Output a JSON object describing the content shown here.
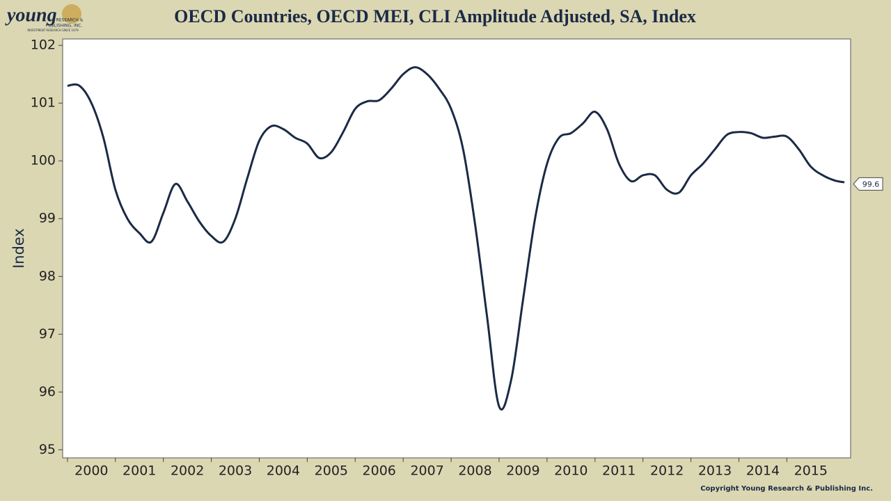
{
  "logo": {
    "name": "young",
    "line1": "RESEARCH &",
    "line2": "PUBLISHING, INC.",
    "tagline": "INVESTMENT RESEARCH SINCE 1979"
  },
  "copyright": "Copyright Young Research & Publishing Inc.",
  "chart_data": {
    "type": "line",
    "title": "OECD Countries, OECD MEI, CLI Amplitude Adjusted, SA, Index",
    "y_label": "Index",
    "x": [
      2000,
      2000.25,
      2000.5,
      2000.75,
      2001,
      2001.25,
      2001.5,
      2001.75,
      2002,
      2002.25,
      2002.5,
      2002.75,
      2003,
      2003.25,
      2003.5,
      2003.75,
      2004,
      2004.25,
      2004.5,
      2004.75,
      2005,
      2005.25,
      2005.5,
      2005.75,
      2006,
      2006.25,
      2006.5,
      2006.75,
      2007,
      2007.25,
      2007.5,
      2007.75,
      2008,
      2008.25,
      2008.5,
      2008.75,
      2009,
      2009.25,
      2009.5,
      2009.75,
      2010,
      2010.25,
      2010.5,
      2010.75,
      2011,
      2011.25,
      2011.5,
      2011.75,
      2012,
      2012.25,
      2012.5,
      2012.75,
      2013,
      2013.25,
      2013.5,
      2013.75,
      2014,
      2014.25,
      2014.5,
      2014.75,
      2015,
      2015.25,
      2015.5,
      2015.75,
      2016,
      2016.2
    ],
    "series": [
      {
        "name": "OECD CLI",
        "color": "#1b2a45",
        "values": [
          101.3,
          101.3,
          101.0,
          100.4,
          99.5,
          99.0,
          98.75,
          98.6,
          99.1,
          99.6,
          99.3,
          98.95,
          98.7,
          98.6,
          99.0,
          99.7,
          100.35,
          100.6,
          100.55,
          100.4,
          100.3,
          100.05,
          100.15,
          100.5,
          100.9,
          101.03,
          101.05,
          101.25,
          101.5,
          101.62,
          101.5,
          101.25,
          100.9,
          100.2,
          98.9,
          97.3,
          95.75,
          96.2,
          97.6,
          99.0,
          99.95,
          100.4,
          100.48,
          100.65,
          100.85,
          100.55,
          99.95,
          99.65,
          99.75,
          99.75,
          99.5,
          99.45,
          99.75,
          99.95,
          100.2,
          100.45,
          100.5,
          100.48,
          100.4,
          100.42,
          100.42,
          100.2,
          99.9,
          99.75,
          99.66,
          99.63
        ]
      }
    ],
    "end_label": 99.6,
    "xlim": [
      1999.9,
      2016.33
    ],
    "xticks": [
      2000,
      2001,
      2002,
      2003,
      2004,
      2005,
      2006,
      2007,
      2008,
      2009,
      2010,
      2011,
      2012,
      2013,
      2014,
      2015
    ],
    "ylim": [
      94.86,
      102.11
    ],
    "yticks": [
      95,
      96,
      97,
      98,
      99,
      100,
      101,
      102
    ]
  }
}
